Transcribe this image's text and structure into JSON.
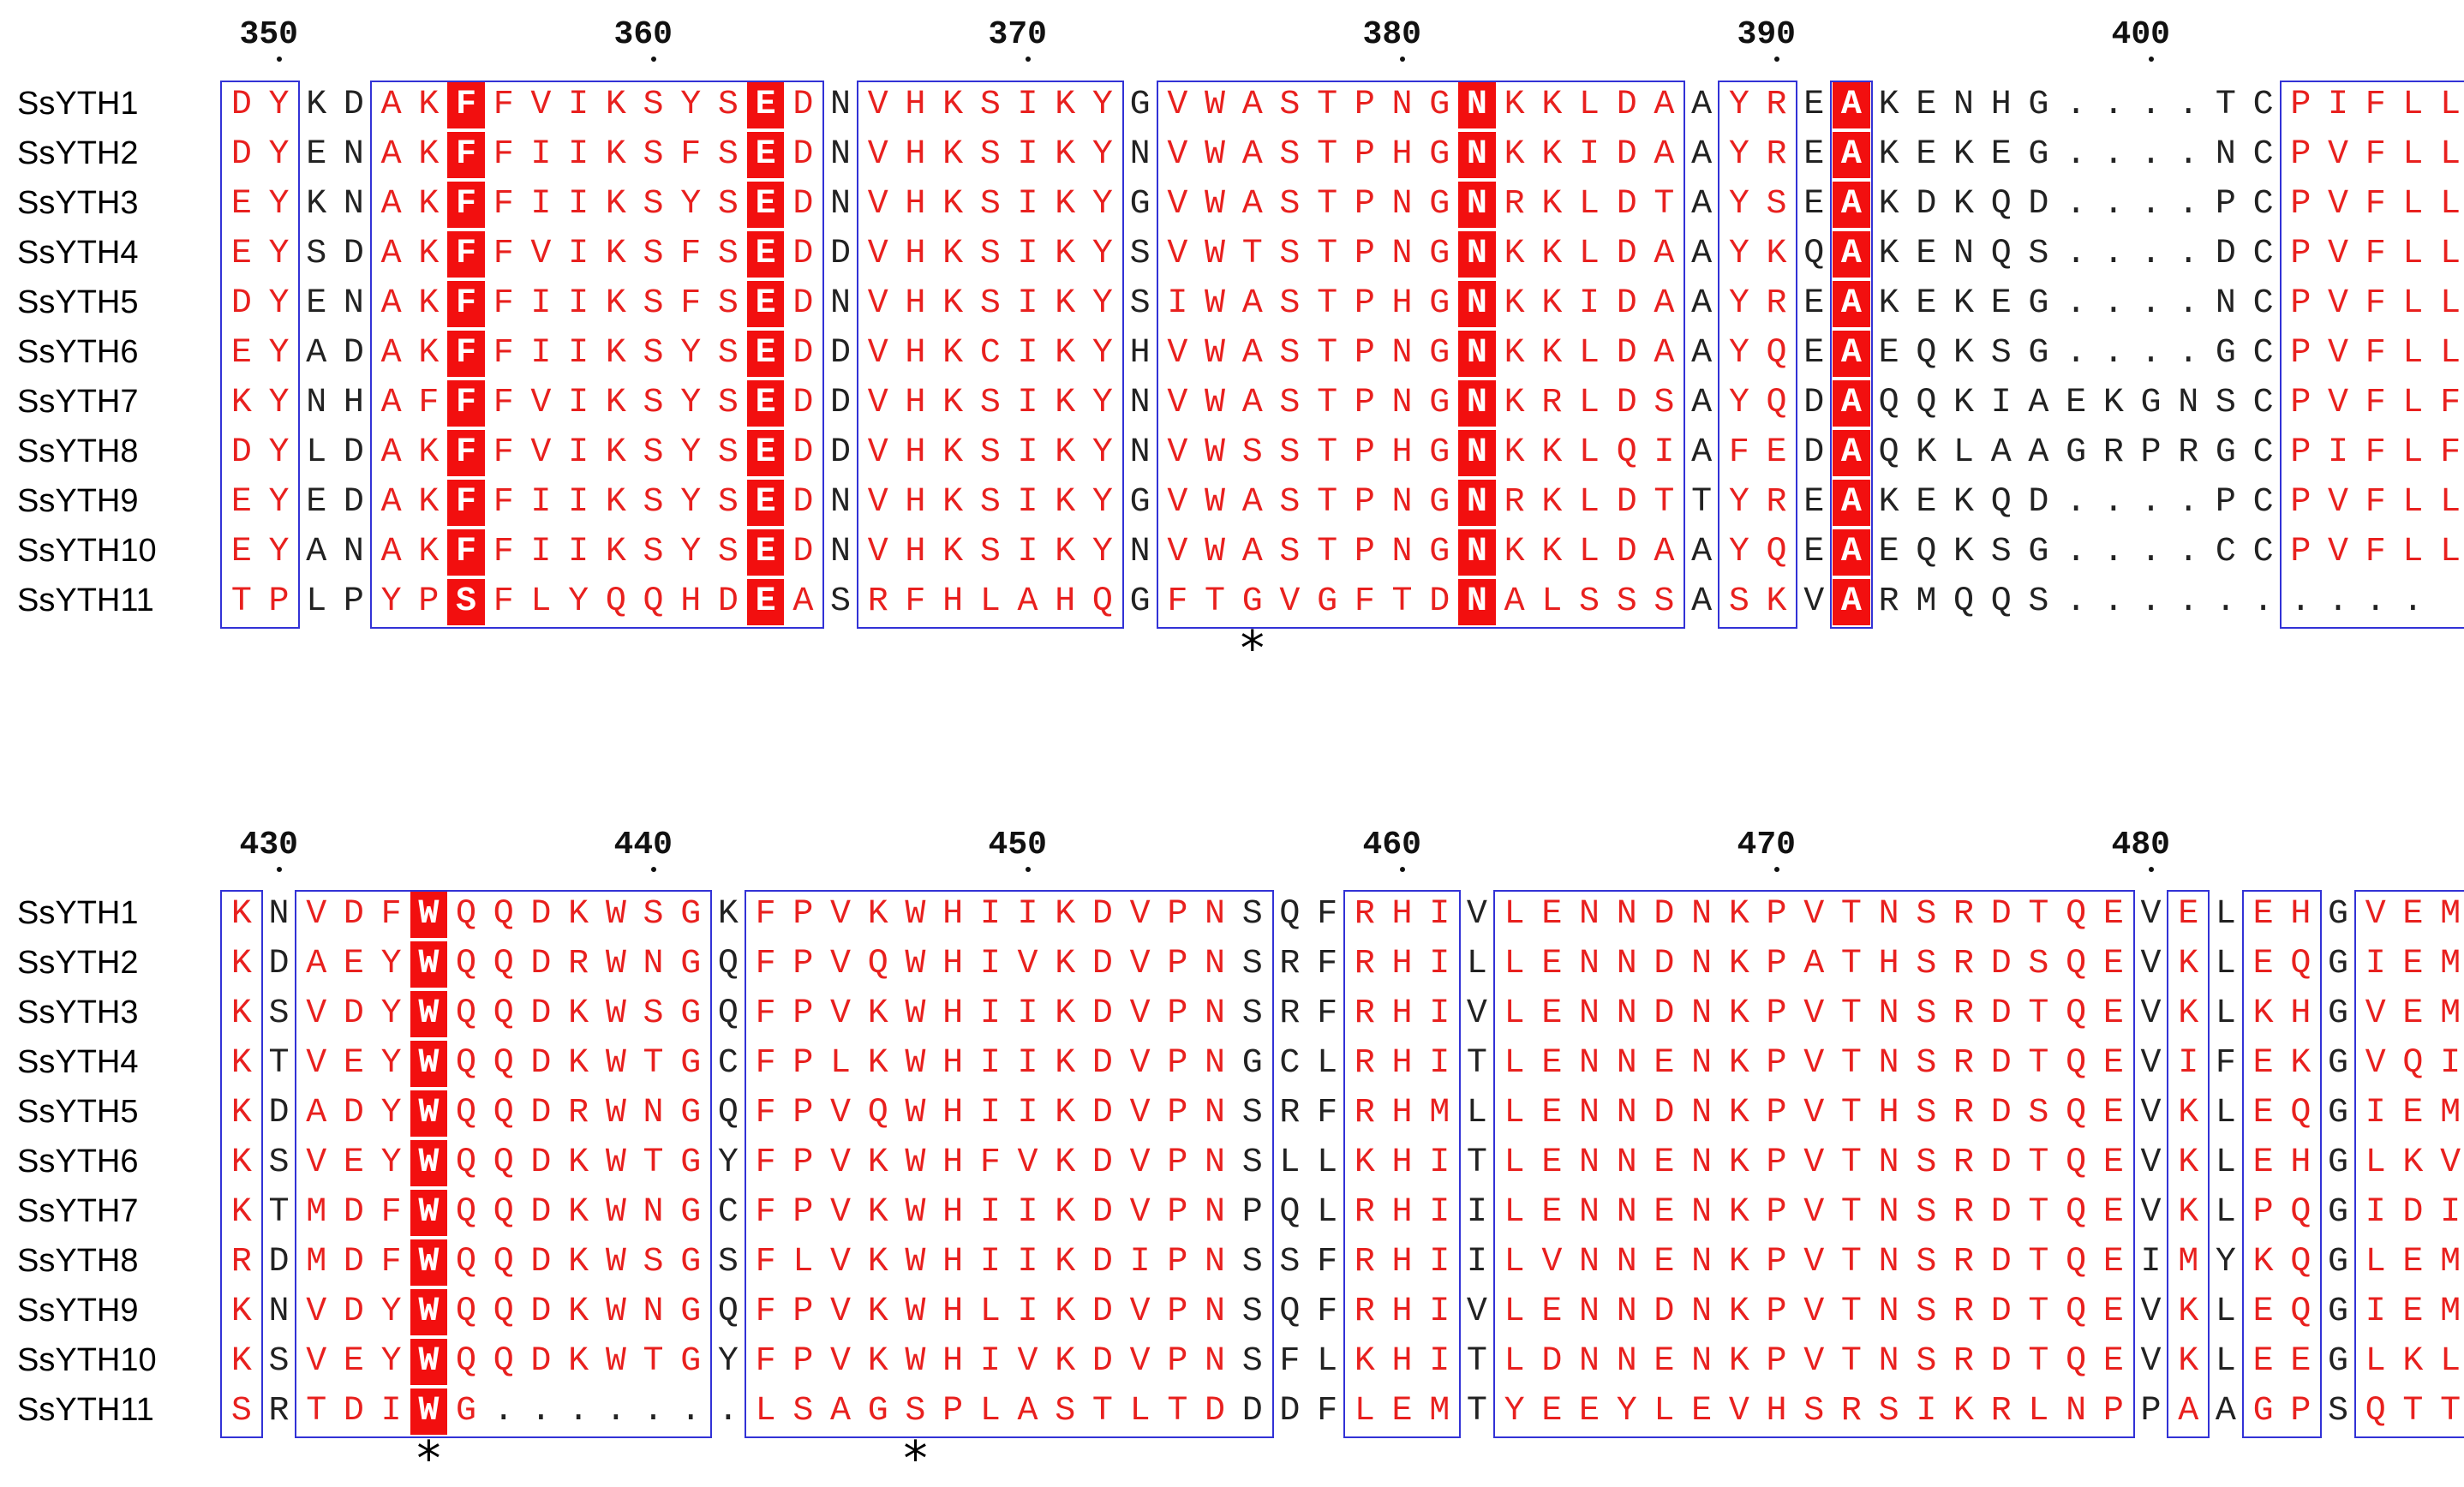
{
  "blocks": [
    {
      "ticks": [
        "350",
        "360",
        "370",
        "380",
        "390",
        "400"
      ],
      "rows": [
        {
          "name": "SsYTH1",
          "seq": "DYKDAKFFVIKSYSEDNVHKSIKYGVWASTPNGNKKLDAAYREAKENHG....TCPIFLL"
        },
        {
          "name": "SsYTH2",
          "seq": "DYENAKFFIIKSFSEDNVHKSIKYNVWASTPHGNKKIDAAYREAKEKEG....NCPVFLL"
        },
        {
          "name": "SsYTH3",
          "seq": "EYKNAKFFIIKSYSEDNVHKSIKYGVWASTPNGNRKLDTAYSEAKDKQD....PCPVFLL"
        },
        {
          "name": "SsYTH4",
          "seq": "EYSDAKFFVIKSFSEDDVHKSIKYSVWTSTPNGNKKLDAAYKQAKENQS....DCPVFLL"
        },
        {
          "name": "SsYTH5",
          "seq": "DYENAKFFIIKSFSEDNVHKSIKYSIWASTPHGNKKIDAAYREAKEKEG....NCPVFLL"
        },
        {
          "name": "SsYTH6",
          "seq": "EYADAKFFIIKSYSEDDVHKCIKYHVWASTPNGNKKLDAAYQEAEQKSG....GCPVFLL"
        },
        {
          "name": "SsYTH7",
          "seq": "KYNHAFFFVIKSYSEDDVHKSIKYNVWASTPNGNKRLDSAYQDAQQKIAEKGNSCPVFLF"
        },
        {
          "name": "SsYTH8",
          "seq": "DYLDAKFFVIKSYSEDDVHKSIKYNVWSSTPHGNKKLQIAFEDAQKLAAGRPRGCPIFLF"
        },
        {
          "name": "SsYTH9",
          "seq": "EYEDAKFFIIKSYSEDNVHKSIKYGVWASTPNGNRKLDTTYREAKEKQD....PCPVFLL"
        },
        {
          "name": "SsYTH10",
          "seq": "EYANAKFFIIKSYSEDNVHKSIKYNVWASTPNGNKKLDAAYQEAEQKSG....CCPVFLL"
        },
        {
          "name": "SsYTH11",
          "seq": "TPLPYPSFLYQQHDEASRFHLAHQGFTGVGFTDNALSSSASKVARMQQS.........."
        }
      ],
      "stars": [
        "*"
      ]
    },
    {
      "ticks": [
        "430",
        "440",
        "450",
        "460",
        "470",
        "480"
      ],
      "rows": [
        {
          "name": "SsYTH1",
          "seq": "KNVDFWQQDKWSGKFPVKWHIIKDVPNSQFRHIVLENNDNKPVTNSRDTQEVELEHGVEM"
        },
        {
          "name": "SsYTH2",
          "seq": "KDAEYWQQDRWNGQFPVQWHIVKDVPNSRFRHILLENNDNKPATHSRDSQEVKLEQGIEM"
        },
        {
          "name": "SsYTH3",
          "seq": "KSVDYWQQDKWSGQFPVKWHIIKDVPNSRFRHIVLENNDNKPVTNSRDTQEVKLKHGVEM"
        },
        {
          "name": "SsYTH4",
          "seq": "KTVEYWQQDKWTGCFPLKWHIIKDVPNGCLRHITLENNENKPVTNSRDTQEVIFEKGVQI"
        },
        {
          "name": "SsYTH5",
          "seq": "KDADYWQQDRWNGQFPVQWHIIKDVPNSRFRHMLLENNDNKPVTHSRDSQEVKLEQGIEM"
        },
        {
          "name": "SsYTH6",
          "seq": "KSVEYWQQDKWTGYFPVKWHFVKDVPNSLLKHITLENNENKPVTNSRDTQEVKLEHGLKV"
        },
        {
          "name": "SsYTH7",
          "seq": "KTMDFWQQDKWNGCFPVKWHIIKDVPNPQLRHIILENNENKPVTNSRDTQEVKLPQGIDI"
        },
        {
          "name": "SsYTH8",
          "seq": "RDMDFWQQDKWSGSFLVKWHIIKDIPNSSFRHIILVNNENKPVTNSRDTQEIMYKQGLEM"
        },
        {
          "name": "SsYTH9",
          "seq": "KNVDYWQQDKWNGQFPVKWHLIKDVPNSQFRHIVLENNDNKPVTNSRDTQEVKLEQGIEM"
        },
        {
          "name": "SsYTH10",
          "seq": "KSVEYWQQDKWTGYFPVKWHIVKDVPNSFLKHITLDNNENKPVTNSRDTQEVKLEEGLKL"
        },
        {
          "name": "SsYTH11",
          "seq": "SRTDIWG.......LSAGSPLASTLTDDDFLEMTYEEYLEVHSRSIKRLNPPAAGPSQTT"
        }
      ],
      "stars": [
        "*",
        "*"
      ]
    }
  ],
  "colors": {
    "conserved_text": "#e8201e",
    "identical_bg": "#f20f0f",
    "box_border": "#3232d6",
    "plain_text": "#222222"
  }
}
